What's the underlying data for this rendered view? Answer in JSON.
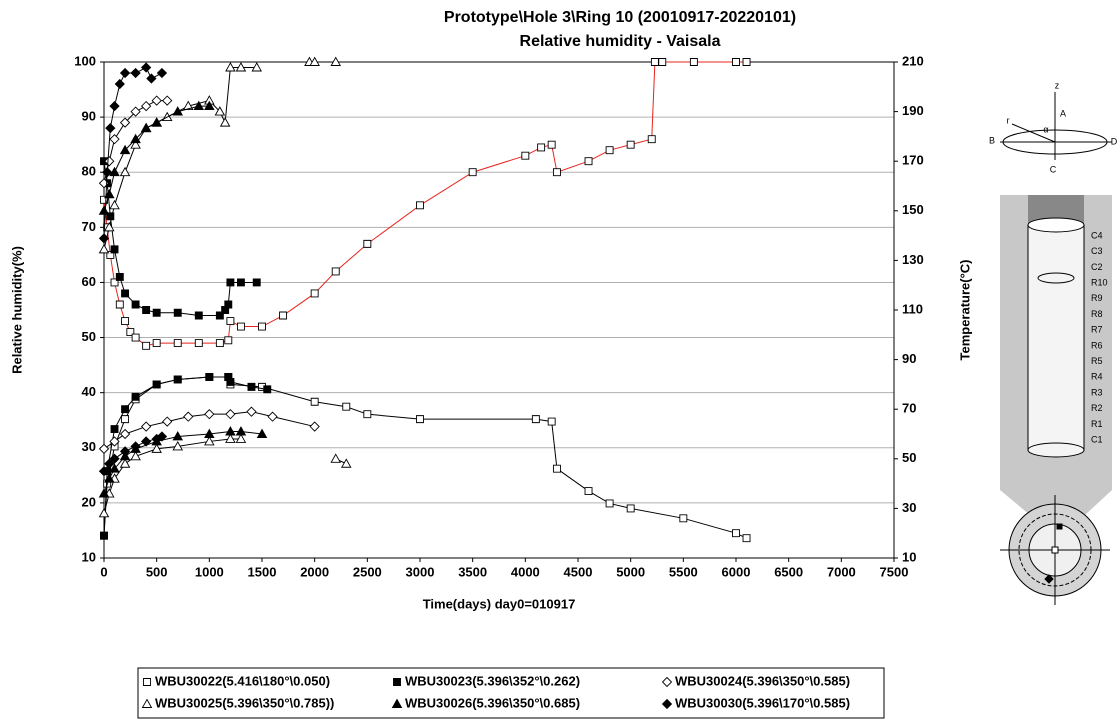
{
  "chart_data": {
    "type": "line",
    "title": "Prototype\\Hole 3\\Ring 10    (20010917-20220101)",
    "subtitle": "Relative humidity - Vaisala",
    "x_label": "Time(days) day0=010917",
    "y_label": "Relative humidity(%)",
    "y2_label": "Temperature(°C)",
    "xlim": [
      0,
      7500
    ],
    "xticks": [
      0,
      500,
      1000,
      1500,
      2000,
      2500,
      3000,
      3500,
      4000,
      4500,
      5000,
      5500,
      6000,
      6500,
      7000,
      7500
    ],
    "ylim": [
      10,
      100
    ],
    "yticks": [
      10,
      20,
      30,
      40,
      50,
      60,
      70,
      80,
      90,
      100
    ],
    "y2lim": [
      10,
      210
    ],
    "y2ticks": [
      10,
      30,
      50,
      70,
      90,
      110,
      130,
      150,
      170,
      190,
      210
    ],
    "grid": true,
    "series": [
      {
        "name": "WBU30022(5.416\\180°\\0.050)",
        "marker": "square-open",
        "color": "#000000",
        "humidity_color": "#e8241c",
        "x": [
          0,
          30,
          60,
          100,
          150,
          200,
          250,
          300,
          400,
          500,
          700,
          900,
          1100,
          1180,
          1200,
          1300,
          1500,
          1700,
          2000,
          2200,
          2500,
          3000,
          3500,
          4000,
          4150,
          4250,
          4300,
          4600,
          4800,
          5000,
          5200,
          5230,
          5300,
          5600,
          6000,
          6100
        ],
        "values": [
          75,
          70,
          65,
          60,
          56,
          53,
          51,
          50,
          48.5,
          49,
          49,
          49,
          49,
          49.5,
          53,
          52,
          52,
          54,
          58,
          62,
          67,
          74,
          80,
          83,
          84.5,
          85,
          80,
          82,
          84,
          85,
          86,
          100,
          100,
          100,
          100,
          100
        ],
        "temperature_x": [
          0,
          30,
          100,
          200,
          300,
          500,
          700,
          1000,
          1180,
          1200,
          1500,
          2000,
          2300,
          2500,
          3000,
          4100,
          4250,
          4300,
          4600,
          4800,
          5000,
          5500,
          6000,
          6100
        ],
        "temperature": [
          19,
          40,
          55,
          66,
          74,
          80,
          82,
          83,
          83,
          80,
          79,
          73,
          71,
          68,
          66,
          66,
          65,
          46,
          37,
          32,
          30,
          26,
          20,
          18
        ]
      },
      {
        "name": "WBU30023(5.396\\352°\\0.262)",
        "marker": "square",
        "color": "#000000",
        "humidity_color": "#000000",
        "x": [
          0,
          30,
          60,
          100,
          150,
          200,
          300,
          400,
          500,
          700,
          900,
          1100,
          1150,
          1180,
          1200,
          1300,
          1450
        ],
        "values": [
          82,
          78,
          72,
          66,
          61,
          58,
          56,
          55,
          54.5,
          54.5,
          54,
          54,
          55,
          56,
          60,
          60,
          60
        ],
        "temperature_x": [
          0,
          30,
          100,
          200,
          300,
          500,
          700,
          1000,
          1180,
          1200,
          1400,
          1550
        ],
        "temperature": [
          19,
          45,
          62,
          70,
          75,
          80,
          82,
          83,
          83,
          81,
          79,
          78
        ]
      },
      {
        "name": "WBU30024(5.396\\350°\\0.585)",
        "marker": "diamond-open",
        "color": "#000000",
        "humidity_color": "#000000",
        "x": [
          0,
          50,
          100,
          200,
          300,
          400,
          500,
          600
        ],
        "values": [
          78,
          82,
          86,
          89,
          91,
          92,
          93,
          93
        ],
        "temperature_x": [
          0,
          100,
          200,
          400,
          600,
          800,
          1000,
          1200,
          1400,
          1600,
          2000
        ],
        "temperature": [
          54,
          57,
          60,
          63,
          65,
          67,
          68,
          68,
          69,
          67,
          63
        ]
      },
      {
        "name": "WBU30025(5.396\\350°\\0.785))",
        "marker": "triangle-open",
        "color": "#000000",
        "humidity_color": "#000000",
        "x": [
          0,
          50,
          100,
          200,
          300,
          400,
          500,
          600,
          800,
          1000,
          1100,
          1150,
          1200,
          1300,
          1450,
          1700,
          1950,
          2000,
          2200
        ],
        "values": [
          66,
          70,
          74,
          80,
          85,
          88,
          89,
          90,
          92,
          93,
          91,
          89,
          99,
          99,
          99,
          null,
          100,
          100,
          100
        ],
        "temperature_x": [
          0,
          50,
          100,
          200,
          300,
          500,
          700,
          1000,
          1200,
          1300,
          1800,
          2200,
          2300
        ],
        "temperature": [
          28,
          36,
          42,
          48,
          51,
          54,
          55,
          57,
          58,
          58,
          null,
          50,
          48
        ]
      },
      {
        "name": "WBU30026(5.396\\350°\\0.685)",
        "marker": "triangle",
        "color": "#000000",
        "humidity_color": "#000000",
        "x": [
          0,
          50,
          100,
          200,
          300,
          400,
          500,
          700,
          900,
          1000
        ],
        "values": [
          73,
          76,
          80,
          84,
          86,
          88,
          89,
          91,
          92,
          92
        ],
        "temperature_x": [
          0,
          50,
          100,
          200,
          300,
          500,
          700,
          1000,
          1200,
          1300,
          1500
        ],
        "temperature": [
          36,
          42,
          46,
          51,
          54,
          57,
          59,
          60,
          61,
          61,
          60
        ]
      },
      {
        "name": "WBU30030(5.396\\170°\\0.585)",
        "marker": "diamond",
        "color": "#000000",
        "humidity_color": "#000000",
        "x": [
          0,
          30,
          60,
          100,
          150,
          200,
          300,
          400,
          450,
          550
        ],
        "values": [
          68,
          80,
          88,
          92,
          96,
          98,
          98,
          99,
          97,
          98
        ],
        "temperature_x": [
          0,
          50,
          100,
          200,
          300,
          400,
          500,
          550
        ],
        "temperature": [
          45,
          48,
          50,
          53,
          55,
          57,
          58,
          59
        ]
      }
    ]
  },
  "diagram": {
    "axis_labels": [
      "z",
      "A",
      "B",
      "C",
      "D",
      "r",
      "α"
    ],
    "layers": [
      "C4",
      "C3",
      "C2",
      "R10",
      "R9",
      "R8",
      "R7",
      "R6",
      "R5",
      "R4",
      "R3",
      "R2",
      "R1",
      "C1"
    ]
  }
}
